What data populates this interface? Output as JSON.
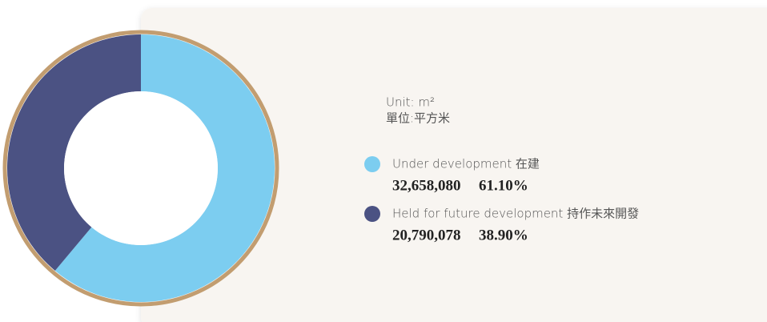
{
  "chart_data": {
    "type": "donut",
    "unit_label": "Unit: m²",
    "unit_label_zh": "單位:平方米",
    "categories": [
      "Under development 在建",
      "Held for future development 持作未來開發"
    ],
    "values": [
      32658080,
      20790078
    ],
    "value_labels": [
      "32,658,080",
      "20,790,078"
    ],
    "percent_values": [
      61.1,
      38.9
    ],
    "percent_labels": [
      "61.10%",
      "38.90%"
    ],
    "colors": [
      "#7ccdf0",
      "#4b5283"
    ],
    "ring_color": "#c29d70"
  }
}
